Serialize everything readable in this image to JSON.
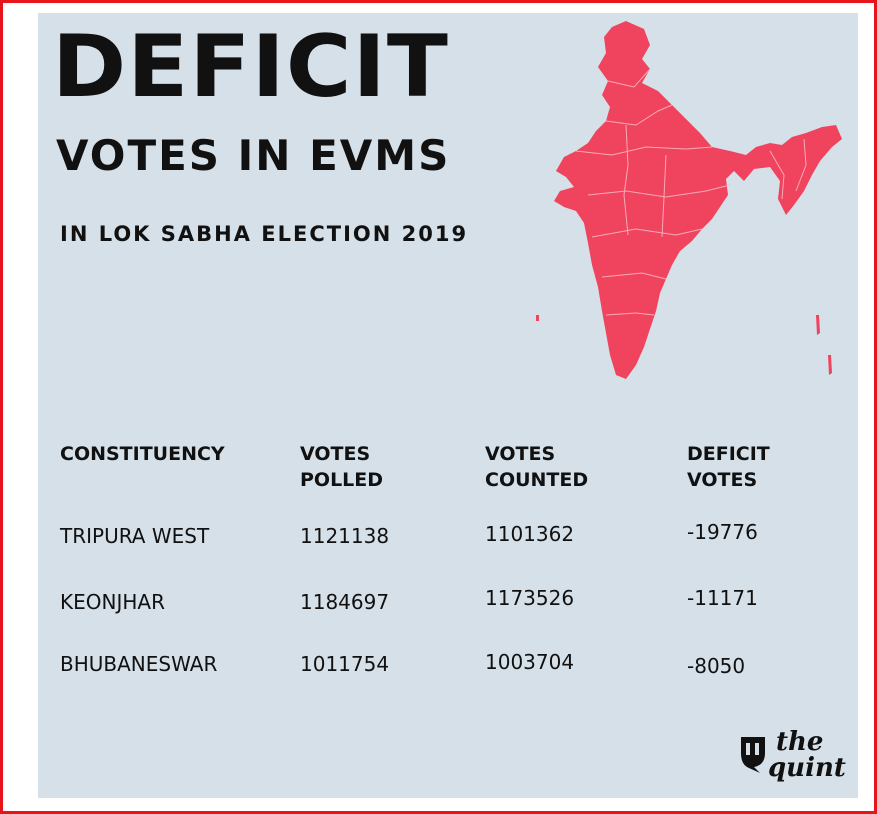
{
  "title": "DEFICIT",
  "subtitle": "VOTES IN EVMS",
  "tagline": "IN LOK SABHA ELECTION 2019",
  "map_icon": "india-map-icon",
  "colors": {
    "map_fill": "#f0435e",
    "background": "#d6e0e8",
    "frame": "#e8141c",
    "text": "#111111"
  },
  "table": {
    "headers": [
      [
        "CONSTITUENCY"
      ],
      [
        "VOTES",
        "POLLED"
      ],
      [
        "VOTES",
        "COUNTED"
      ],
      [
        "DEFICIT",
        "VOTES"
      ]
    ],
    "rows": [
      {
        "constituency": "TRIPURA WEST",
        "polled": "1121138",
        "counted": "1101362",
        "deficit": "-19776"
      },
      {
        "constituency": "KEONJHAR",
        "polled": "1184697",
        "counted": "1173526",
        "deficit": "-11171"
      },
      {
        "constituency": "BHUBANESWAR",
        "polled": "1011754",
        "counted": "1003704",
        "deficit": "-8050"
      }
    ]
  },
  "logo": {
    "line1": "the",
    "line2": "quint",
    "icon": "quint-logo-icon"
  }
}
